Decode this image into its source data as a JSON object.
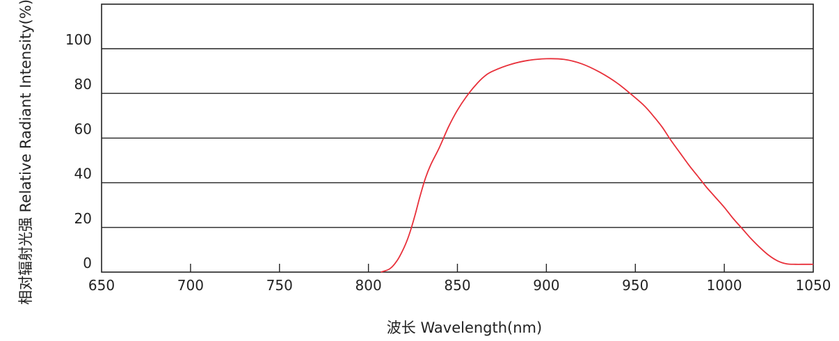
{
  "chart_data": {
    "type": "line",
    "title": "",
    "xlabel": "波长  Wavelength(nm)",
    "ylabel": "相对辐射光强  Relative  Radiant Intensity(%)",
    "xlim": [
      650,
      1050
    ],
    "ylim": [
      0,
      100
    ],
    "x_ticks": [
      "650",
      "700",
      "750",
      "800",
      "850",
      "900",
      "950",
      "1000",
      "1050"
    ],
    "y_ticks": [
      "0",
      "20",
      "40",
      "60",
      "80",
      "100"
    ],
    "grid": "horizontal",
    "series": [
      {
        "color": "#e8303a",
        "points": [
          [
            807,
            0
          ],
          [
            812,
            1.5
          ],
          [
            816,
            5
          ],
          [
            820,
            11
          ],
          [
            823,
            17
          ],
          [
            826,
            25
          ],
          [
            829,
            34
          ],
          [
            832,
            42
          ],
          [
            835,
            48
          ],
          [
            840,
            56
          ],
          [
            845,
            65
          ],
          [
            850,
            72.5
          ],
          [
            855,
            78.5
          ],
          [
            860,
            83.5
          ],
          [
            865,
            87.5
          ],
          [
            870,
            90
          ],
          [
            880,
            93
          ],
          [
            890,
            94.8
          ],
          [
            900,
            95.5
          ],
          [
            910,
            95.2
          ],
          [
            920,
            93.2
          ],
          [
            930,
            89.5
          ],
          [
            940,
            84.5
          ],
          [
            950,
            78
          ],
          [
            955,
            74.5
          ],
          [
            960,
            70
          ],
          [
            965,
            65
          ],
          [
            970,
            59
          ],
          [
            975,
            53.5
          ],
          [
            980,
            48
          ],
          [
            985,
            43
          ],
          [
            990,
            38
          ],
          [
            995,
            33.5
          ],
          [
            1000,
            29
          ],
          [
            1005,
            24
          ],
          [
            1010,
            19.5
          ],
          [
            1015,
            15
          ],
          [
            1020,
            11
          ],
          [
            1025,
            7.5
          ],
          [
            1030,
            5
          ],
          [
            1035,
            3.7
          ],
          [
            1040,
            3.5
          ],
          [
            1045,
            3.5
          ],
          [
            1050,
            3.5
          ]
        ]
      }
    ]
  }
}
